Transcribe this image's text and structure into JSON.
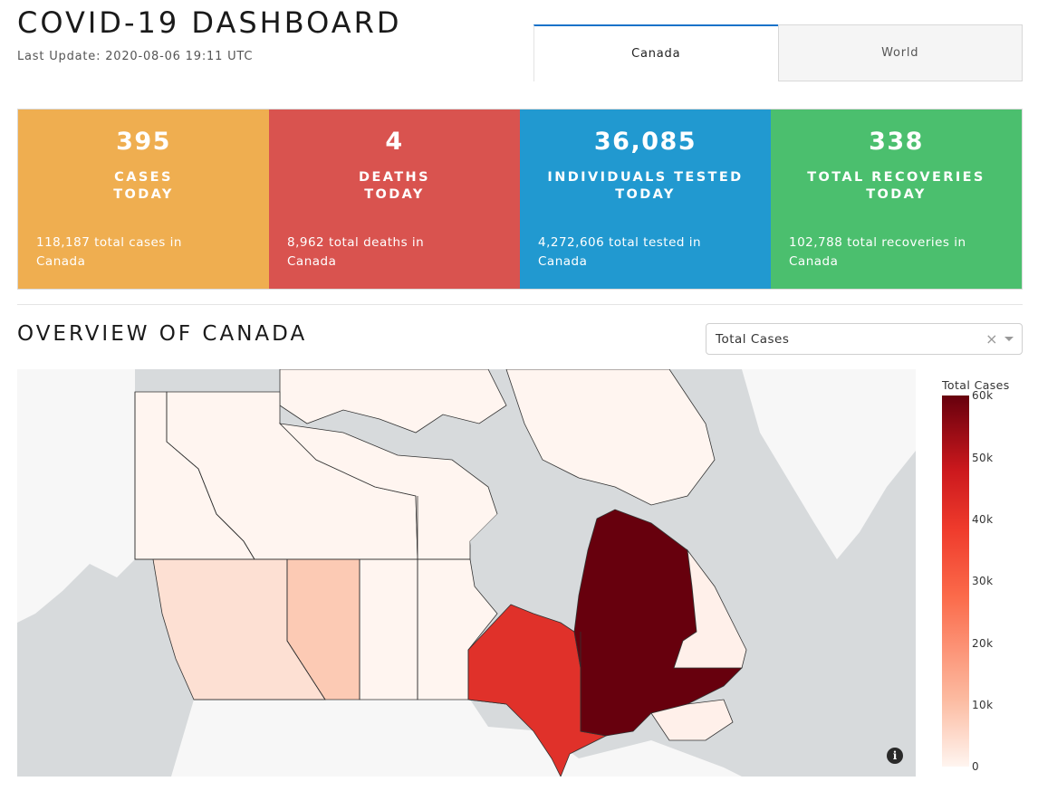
{
  "header": {
    "title": "COVID-19 DASHBOARD",
    "last_update": "Last Update: 2020-08-06 19:11 UTC"
  },
  "tabs": [
    {
      "label": "Canada",
      "active": true
    },
    {
      "label": "World",
      "active": false
    }
  ],
  "cards": [
    {
      "value": "395",
      "label_line1": "CASES",
      "label_line2": "TODAY",
      "footer": "118,187 total cases in Canada",
      "color": "#efae50"
    },
    {
      "value": "4",
      "label_line1": "DEATHS",
      "label_line2": "TODAY",
      "footer": "8,962 total deaths in Canada",
      "color": "#d9534f"
    },
    {
      "value": "36,085",
      "label_line1": "INDIVIDUALS TESTED",
      "label_line2": "TODAY",
      "footer": "4,272,606 total tested in Canada",
      "color": "#2199d0"
    },
    {
      "value": "338",
      "label_line1": "TOTAL RECOVERIES",
      "label_line2": "TODAY",
      "footer": "102,788 total recoveries in Canada",
      "color": "#4bbf6e"
    }
  ],
  "overview": {
    "title": "OVERVIEW OF CANADA",
    "dropdown": {
      "selected": "Total Cases",
      "clear_icon": "close-icon",
      "arrow_icon": "chevron-down-icon"
    }
  },
  "map": {
    "colorbar_title": "Total Cases",
    "colorbar_ticks": [
      "60k",
      "50k",
      "40k",
      "30k",
      "20k",
      "10k",
      "0"
    ],
    "colors": {
      "water": "#d7dadc",
      "land": "#f7f7f7",
      "lowest": "#fff5f0",
      "alberta": "#fccab4",
      "bc": "#fde0d3",
      "ontario": "#e0312a",
      "quebec": "#67000d",
      "atlantic": "#fff0ea"
    },
    "info_icon": "info-icon"
  }
}
